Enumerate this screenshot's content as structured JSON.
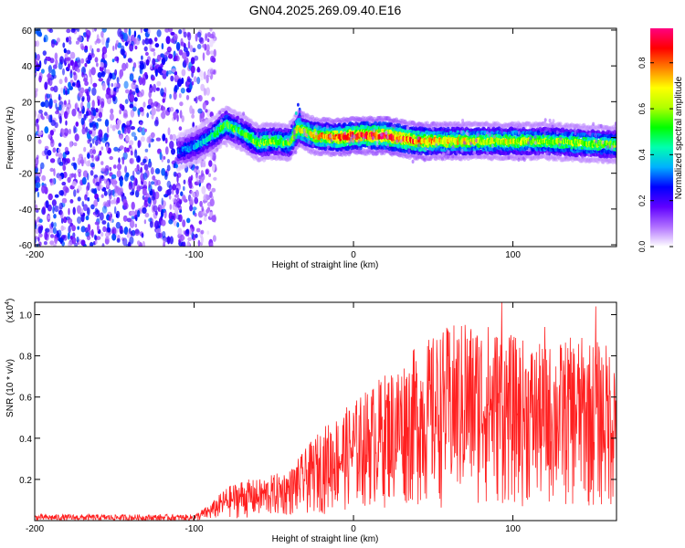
{
  "title": "GN04.2025.269.09.40.E16",
  "chart_data": [
    {
      "type": "heatmap",
      "xlabel": "Height of straight line (km)",
      "ylabel": "Frequency (Hz)",
      "xlim": [
        -200,
        165
      ],
      "ylim": [
        -61,
        61
      ],
      "xticks": [
        -200,
        -100,
        0,
        100
      ],
      "yticks": [
        60,
        40,
        20,
        0,
        -20,
        -40,
        -60
      ],
      "colorbar": {
        "label": "Normalized spectral amplitude",
        "range": [
          0,
          0.95
        ],
        "ticks": [
          0.0,
          0.2,
          0.4,
          0.6,
          0.8
        ],
        "tick_labels": [
          "0.0",
          "0.2",
          "0.4",
          "0.6",
          "0.8"
        ],
        "colors": [
          "#ffffff",
          "#b070ff",
          "#6000ff",
          "#0000ff",
          "#00b0ff",
          "#00ffb0",
          "#00ff00",
          "#b0ff00",
          "#ffff00",
          "#ff8000",
          "#ff0000",
          "#ff0080"
        ]
      },
      "noise_region": {
        "x_range": [
          -200,
          -90
        ],
        "amplitude": 0.3
      },
      "ridge": [
        {
          "x": -110,
          "y": -8,
          "amp": 0.3
        },
        {
          "x": -100,
          "y": -5,
          "amp": 0.35
        },
        {
          "x": -90,
          "y": 0,
          "amp": 0.4
        },
        {
          "x": -80,
          "y": 7,
          "amp": 0.55
        },
        {
          "x": -70,
          "y": 3,
          "amp": 0.5
        },
        {
          "x": -60,
          "y": -3,
          "amp": 0.55
        },
        {
          "x": -50,
          "y": -2,
          "amp": 0.6
        },
        {
          "x": -40,
          "y": -3,
          "amp": 0.55
        },
        {
          "x": -35,
          "y": 5,
          "amp": 0.65
        },
        {
          "x": -25,
          "y": 1,
          "amp": 0.7
        },
        {
          "x": -10,
          "y": 0,
          "amp": 0.8
        },
        {
          "x": 0,
          "y": 1,
          "amp": 0.85
        },
        {
          "x": 20,
          "y": 1,
          "amp": 0.9
        },
        {
          "x": 40,
          "y": -2,
          "amp": 0.8
        },
        {
          "x": 60,
          "y": -2,
          "amp": 0.7
        },
        {
          "x": 80,
          "y": -2,
          "amp": 0.65
        },
        {
          "x": 100,
          "y": -2,
          "amp": 0.65
        },
        {
          "x": 120,
          "y": -2,
          "amp": 0.6
        },
        {
          "x": 140,
          "y": -3,
          "amp": 0.6
        },
        {
          "x": 165,
          "y": -4,
          "amp": 0.55
        }
      ]
    },
    {
      "type": "line",
      "xlabel": "Height of straight line (km)",
      "ylabel": "SNR (10 * v/v)",
      "y_multiplier_label": "(x10",
      "y_multiplier_exponent": "4",
      "xlim": [
        -200,
        165
      ],
      "ylim": [
        0,
        1.06
      ],
      "xticks": [
        -200,
        -100,
        0,
        100
      ],
      "yticks": [
        0.2,
        0.4,
        0.6,
        0.8,
        1.0
      ],
      "ytick_labels": [
        "0.2",
        "0.4",
        "0.6",
        "0.8",
        "1.0"
      ],
      "color": "#ff2020",
      "envelope": [
        {
          "x": -200,
          "low": 0.0,
          "high": 0.03
        },
        {
          "x": -100,
          "low": 0.0,
          "high": 0.03
        },
        {
          "x": -90,
          "low": 0.0,
          "high": 0.08
        },
        {
          "x": -80,
          "low": 0.01,
          "high": 0.16
        },
        {
          "x": -70,
          "low": 0.01,
          "high": 0.2
        },
        {
          "x": -60,
          "low": 0.01,
          "high": 0.2
        },
        {
          "x": -40,
          "low": 0.02,
          "high": 0.25
        },
        {
          "x": -20,
          "low": 0.03,
          "high": 0.45
        },
        {
          "x": 0,
          "low": 0.05,
          "high": 0.58
        },
        {
          "x": 20,
          "low": 0.06,
          "high": 0.72
        },
        {
          "x": 40,
          "low": 0.06,
          "high": 0.85
        },
        {
          "x": 60,
          "low": 0.06,
          "high": 0.95
        },
        {
          "x": 80,
          "low": 0.06,
          "high": 0.98
        },
        {
          "x": 100,
          "low": 0.06,
          "high": 0.9
        },
        {
          "x": 120,
          "low": 0.06,
          "high": 0.85
        },
        {
          "x": 140,
          "low": 0.05,
          "high": 0.9
        },
        {
          "x": 165,
          "low": 0.04,
          "high": 0.85
        }
      ],
      "peaks": [
        {
          "x": 93,
          "y": 1.06
        },
        {
          "x": 152,
          "y": 1.04
        },
        {
          "x": 70,
          "y": 0.95
        },
        {
          "x": 120,
          "y": 0.94
        }
      ]
    }
  ]
}
